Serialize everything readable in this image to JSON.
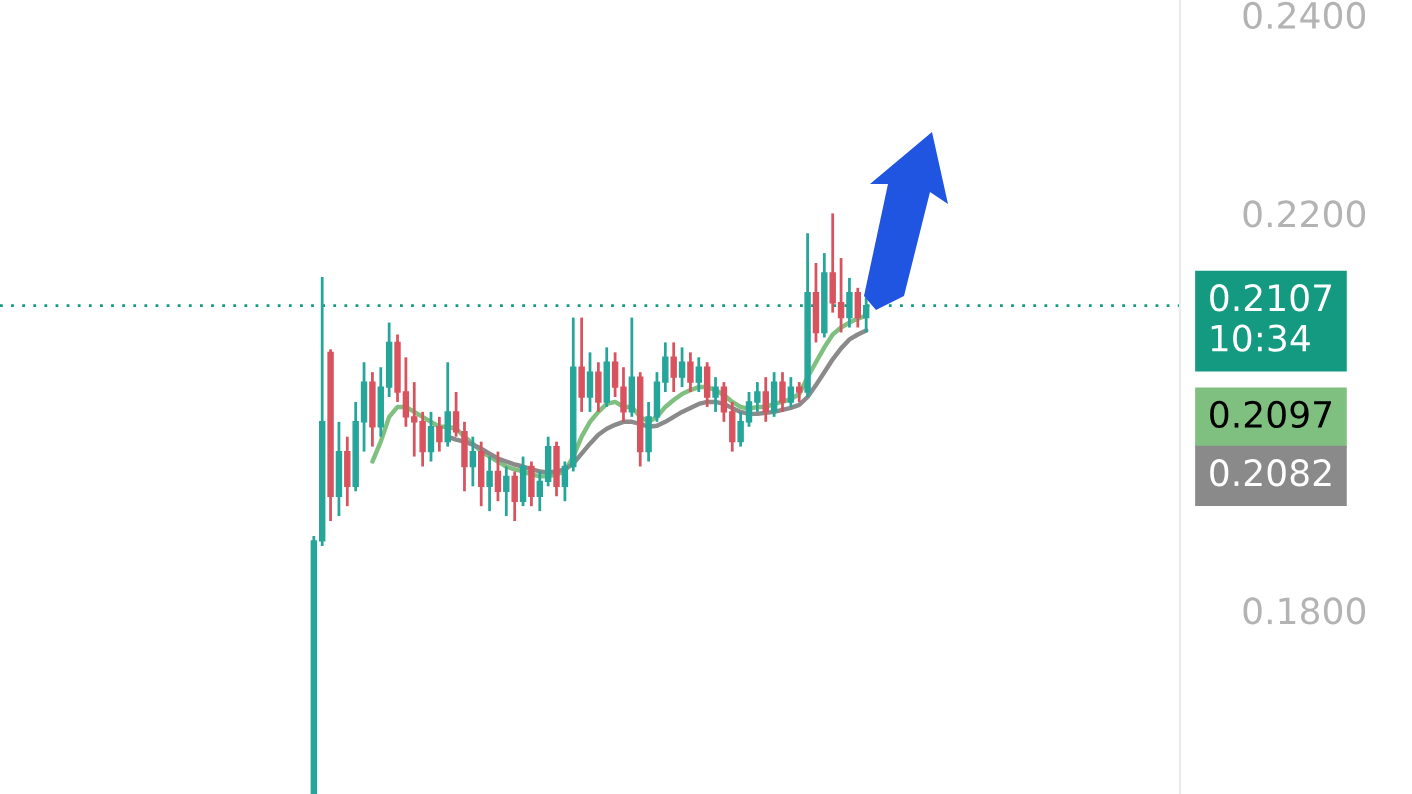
{
  "chart_data": {
    "type": "candlestick",
    "categories": [
      null,
      null,
      null,
      null,
      null,
      null,
      null,
      null,
      null,
      null,
      null,
      null,
      null,
      null,
      null,
      null,
      null,
      null,
      null,
      null,
      null,
      null,
      null,
      null,
      null,
      null,
      null,
      null,
      null,
      null,
      null,
      null,
      null,
      null,
      null,
      null,
      null,
      null,
      null,
      null,
      null,
      null,
      null,
      null,
      null,
      null,
      null,
      null,
      null,
      null,
      null,
      null,
      null,
      null,
      null,
      null,
      null,
      null,
      null,
      null,
      null,
      null,
      null,
      null,
      null,
      null,
      null,
      null,
      null,
      null,
      null,
      null,
      null,
      null,
      null,
      null,
      null,
      null,
      null,
      null,
      null,
      null,
      null,
      null,
      null,
      null,
      null,
      null,
      null,
      null,
      null,
      null,
      null,
      null,
      null,
      null,
      null,
      null,
      null,
      null,
      null,
      null,
      null,
      null,
      null,
      null,
      null,
      null,
      null,
      null,
      null,
      null,
      null,
      null,
      null,
      null,
      null,
      null,
      null,
      null,
      null,
      null,
      null,
      null,
      null,
      null,
      null,
      null,
      null,
      null,
      null,
      null,
      null,
      null,
      null,
      null,
      null,
      null,
      null,
      null,
      null
    ],
    "ohlc": [
      null,
      null,
      null,
      null,
      null,
      null,
      null,
      null,
      null,
      null,
      null,
      null,
      null,
      null,
      null,
      null,
      null,
      null,
      null,
      null,
      null,
      null,
      null,
      null,
      null,
      null,
      null,
      null,
      null,
      null,
      null,
      null,
      null,
      null,
      null,
      null,
      null,
      [
        0.16,
        0.1875,
        0.16,
        0.187
      ],
      [
        0.187,
        0.2136,
        0.1865,
        0.199
      ],
      [
        0.206,
        0.2063,
        0.189,
        0.1915
      ],
      [
        0.1915,
        0.199,
        0.1895,
        0.196
      ],
      [
        0.196,
        0.1975,
        0.1905,
        0.1925
      ],
      [
        0.1925,
        0.201,
        0.192,
        0.199
      ],
      [
        0.199,
        0.205,
        0.196,
        0.203
      ],
      [
        0.203,
        0.204,
        0.1965,
        0.1985
      ],
      [
        0.1985,
        0.2045,
        0.1975,
        0.2025
      ],
      [
        0.2025,
        0.209,
        0.2015,
        0.207
      ],
      [
        0.207,
        0.2078,
        0.201,
        0.202
      ],
      [
        0.202,
        0.2055,
        0.1985,
        0.1995
      ],
      [
        0.1995,
        0.203,
        0.1955,
        0.199
      ],
      [
        0.199,
        0.2,
        0.1945,
        0.196
      ],
      [
        0.196,
        0.2,
        0.195,
        0.1985
      ],
      [
        0.1985,
        0.1995,
        0.196,
        0.197
      ],
      [
        0.197,
        0.205,
        0.1965,
        0.2
      ],
      [
        0.2,
        0.202,
        0.1975,
        0.198
      ],
      [
        0.198,
        0.199,
        0.192,
        0.1945
      ],
      [
        0.1945,
        0.1975,
        0.1925,
        0.196
      ],
      [
        0.196,
        0.197,
        0.1905,
        0.1925
      ],
      [
        0.1925,
        0.1955,
        0.19,
        0.194
      ],
      [
        0.194,
        0.196,
        0.191,
        0.192
      ],
      [
        0.192,
        0.1945,
        0.1895,
        0.1935
      ],
      [
        0.1935,
        0.194,
        0.189,
        0.191
      ],
      [
        0.191,
        0.1955,
        0.1905,
        0.1945
      ],
      [
        0.1945,
        0.195,
        0.1905,
        0.1915
      ],
      [
        0.1915,
        0.194,
        0.19,
        0.193
      ],
      [
        0.193,
        0.1975,
        0.1925,
        0.1965
      ],
      [
        0.1965,
        0.197,
        0.1915,
        0.1925
      ],
      [
        0.1925,
        0.195,
        0.191,
        0.1945
      ],
      [
        0.1945,
        0.2095,
        0.194,
        0.2045
      ],
      [
        0.2045,
        0.2095,
        0.2,
        0.2015
      ],
      [
        0.2015,
        0.206,
        0.2,
        0.204
      ],
      [
        0.204,
        0.205,
        0.2,
        0.201
      ],
      [
        0.201,
        0.2065,
        0.2005,
        0.205
      ],
      [
        0.205,
        0.206,
        0.2015,
        0.2025
      ],
      [
        0.2025,
        0.2045,
        0.199,
        0.2
      ],
      [
        0.2,
        0.2095,
        0.1995,
        0.2035
      ],
      [
        0.2035,
        0.204,
        0.1945,
        0.196
      ],
      [
        0.196,
        0.201,
        0.195,
        0.1995
      ],
      [
        0.1995,
        0.204,
        0.199,
        0.203
      ],
      [
        0.203,
        0.207,
        0.202,
        0.2055
      ],
      [
        0.2055,
        0.207,
        0.202,
        0.2035
      ],
      [
        0.2035,
        0.2065,
        0.2025,
        0.205
      ],
      [
        0.205,
        0.206,
        0.202,
        0.203
      ],
      [
        0.203,
        0.2055,
        0.202,
        0.2045
      ],
      [
        0.2045,
        0.205,
        0.2005,
        0.2015
      ],
      [
        0.2015,
        0.2035,
        0.2,
        0.2025
      ],
      [
        0.2025,
        0.203,
        0.199,
        0.2
      ],
      [
        0.2,
        0.201,
        0.196,
        0.197
      ],
      [
        0.197,
        0.2,
        0.1965,
        0.199
      ],
      [
        0.199,
        0.202,
        0.1985,
        0.201
      ],
      [
        0.201,
        0.203,
        0.2,
        0.202
      ],
      [
        0.202,
        0.2035,
        0.199,
        0.2
      ],
      [
        0.2,
        0.204,
        0.1995,
        0.203
      ],
      [
        0.203,
        0.204,
        0.2,
        0.201
      ],
      [
        0.201,
        0.2035,
        0.2005,
        0.2025
      ],
      [
        0.2025,
        0.203,
        0.201,
        0.202
      ],
      [
        0.202,
        0.218,
        0.2015,
        0.212
      ],
      [
        0.212,
        0.215,
        0.207,
        0.208
      ],
      [
        0.208,
        0.216,
        0.2075,
        0.214
      ],
      [
        0.214,
        0.22,
        0.21,
        0.211
      ],
      [
        0.211,
        0.2155,
        0.208,
        0.2095
      ],
      [
        0.2095,
        0.2135,
        0.2085,
        0.212
      ],
      [
        0.212,
        0.2125,
        0.2085,
        0.2095
      ],
      [
        0.2095,
        0.2115,
        0.208,
        0.2107
      ],
      null,
      null,
      null,
      null,
      null,
      null,
      null,
      null,
      null,
      null,
      null,
      null,
      null,
      null,
      null,
      null,
      null,
      null,
      null,
      null,
      null,
      null,
      null,
      null,
      null,
      null,
      null,
      null,
      null,
      null,
      null,
      null,
      null,
      null,
      null,
      null,
      null
    ],
    "colors": [
      null,
      null,
      null,
      null,
      null,
      null,
      null,
      null,
      null,
      null,
      null,
      null,
      null,
      null,
      null,
      null,
      null,
      null,
      null,
      null,
      null,
      null,
      null,
      null,
      null,
      null,
      null,
      null,
      null,
      null,
      null,
      null,
      null,
      null,
      null,
      null,
      null,
      "#26a69a",
      "#26a69a",
      "#d9535f",
      "#26a69a",
      "#d9535f",
      "#26a69a",
      "#26a69a",
      "#d9535f",
      "#26a69a",
      "#26a69a",
      "#d9535f",
      "#d9535f",
      "#d9535f",
      "#d9535f",
      "#26a69a",
      "#d9535f",
      "#26a69a",
      "#d9535f",
      "#d9535f",
      "#26a69a",
      "#d9535f",
      "#26a69a",
      "#d9535f",
      "#26a69a",
      "#d9535f",
      "#26a69a",
      "#d9535f",
      "#26a69a",
      "#26a69a",
      "#d9535f",
      "#26a69a",
      "#26a69a",
      "#d9535f",
      "#26a69a",
      "#d9535f",
      "#26a69a",
      "#d9535f",
      "#d9535f",
      "#26a69a",
      "#d9535f",
      "#26a69a",
      "#26a69a",
      "#26a69a",
      "#d9535f",
      "#26a69a",
      "#d9535f",
      "#26a69a",
      "#d9535f",
      "#26a69a",
      "#d9535f",
      "#d9535f",
      "#26a69a",
      "#26a69a",
      "#26a69a",
      "#d9535f",
      "#26a69a",
      "#d9535f",
      "#26a69a",
      "#d9535f",
      "#26a69a",
      "#d9535f",
      "#26a69a",
      "#d9535f",
      "#d9535f",
      "#26a69a",
      "#d9535f",
      "#26a69a",
      null,
      null,
      null,
      null,
      null,
      null,
      null,
      null,
      null,
      null,
      null,
      null,
      null,
      null,
      null,
      null,
      null,
      null,
      null,
      null,
      null,
      null,
      null,
      null,
      null,
      null,
      null,
      null,
      null,
      null,
      null,
      null,
      null,
      null,
      null,
      null,
      null
    ],
    "series": [
      {
        "type": "line",
        "color": "#7fbf7f",
        "values": [
          null,
          null,
          null,
          null,
          null,
          null,
          null,
          null,
          null,
          null,
          null,
          null,
          null,
          null,
          null,
          null,
          null,
          null,
          null,
          null,
          null,
          null,
          null,
          null,
          null,
          null,
          null,
          null,
          null,
          null,
          null,
          null,
          null,
          null,
          null,
          null,
          null,
          null,
          null,
          null,
          null,
          null,
          null,
          null,
          0.195,
          0.197,
          0.1995,
          0.2005,
          0.2005,
          0.2,
          0.1995,
          0.199,
          0.1985,
          0.1985,
          0.1983,
          0.1975,
          0.1968,
          0.196,
          0.1955,
          0.195,
          0.1945,
          0.1942,
          0.194,
          0.1937,
          0.1935,
          0.1935,
          0.1937,
          0.194,
          0.1955,
          0.1975,
          0.199,
          0.2,
          0.2008,
          0.201,
          0.2005,
          0.2005,
          0.1995,
          0.199,
          0.1995,
          0.2005,
          0.2012,
          0.2018,
          0.2022,
          0.2025,
          0.2025,
          0.2022,
          0.2017,
          0.201,
          0.2005,
          0.2003,
          0.2005,
          0.2005,
          0.2008,
          0.201,
          0.2013,
          0.2018,
          0.2035,
          0.205,
          0.2065,
          0.2078,
          0.2085,
          0.209,
          0.2094,
          0.2097,
          null,
          null,
          null,
          null,
          null,
          null,
          null,
          null,
          null,
          null,
          null,
          null,
          null,
          null,
          null,
          null,
          null,
          null,
          null,
          null,
          null,
          null,
          null,
          null,
          null,
          null,
          null,
          null,
          null,
          null,
          null,
          null,
          null,
          null,
          null,
          null,
          null
        ]
      },
      {
        "type": "line",
        "color": "#8a8a8a",
        "values": [
          null,
          null,
          null,
          null,
          null,
          null,
          null,
          null,
          null,
          null,
          null,
          null,
          null,
          null,
          null,
          null,
          null,
          null,
          null,
          null,
          null,
          null,
          null,
          null,
          null,
          null,
          null,
          null,
          null,
          null,
          null,
          null,
          null,
          null,
          null,
          null,
          null,
          null,
          null,
          null,
          null,
          null,
          null,
          null,
          null,
          null,
          null,
          null,
          null,
          null,
          null,
          null,
          null,
          0.1975,
          0.1972,
          0.197,
          0.1967,
          0.1963,
          0.1958,
          0.1953,
          0.195,
          0.1947,
          0.1945,
          0.1942,
          0.194,
          0.1939,
          0.194,
          0.1942,
          0.1948,
          0.1958,
          0.1968,
          0.1977,
          0.1983,
          0.1987,
          0.199,
          0.199,
          0.1988,
          0.1985,
          0.1986,
          0.199,
          0.1995,
          0.2,
          0.2004,
          0.2008,
          0.201,
          0.201,
          0.2008,
          0.2004,
          0.2,
          0.1998,
          0.1998,
          0.1999,
          0.2,
          0.2002,
          0.2004,
          0.2007,
          0.2015,
          0.2027,
          0.204,
          0.2053,
          0.2064,
          0.2073,
          0.2078,
          0.2082,
          null,
          null,
          null,
          null,
          null,
          null,
          null,
          null,
          null,
          null,
          null,
          null,
          null,
          null,
          null,
          null,
          null,
          null,
          null,
          null,
          null,
          null,
          null,
          null,
          null,
          null,
          null,
          null,
          null,
          null,
          null,
          null,
          null,
          null,
          null,
          null,
          null
        ]
      }
    ],
    "ylim": [
      0.1615,
      0.2415
    ],
    "yticks": [
      {
        "value": 0.24,
        "label": "0.2400"
      },
      {
        "value": 0.22,
        "label": "0.2200"
      },
      {
        "value": 0.18,
        "label": "0.1800"
      }
    ],
    "ref_lines": [
      {
        "axis": "y",
        "value": 0.2107,
        "label": "0.2107\n10:34",
        "color": "#139a80",
        "line_style": "dotted"
      }
    ],
    "annotations": [
      "0.2097",
      "0.2082"
    ],
    "grid": false,
    "legend": false
  }
}
